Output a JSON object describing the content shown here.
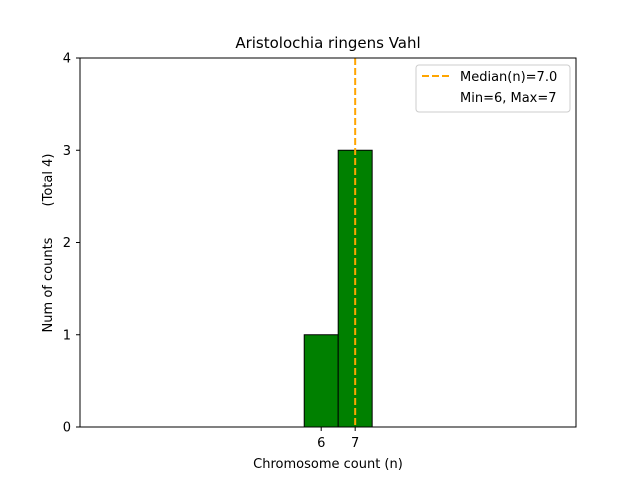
{
  "chart_data": {
    "type": "bar",
    "title": "Aristolochia ringens Vahl",
    "xlabel": "Chromosome count (n)",
    "ylabel": "Num of counts",
    "ylabel_extra": "(Total 4)",
    "bins": [
      {
        "x_start": 6.0,
        "x_end": 7.0,
        "count": 1
      },
      {
        "x_start": 7.0,
        "x_end": 8.0,
        "count": 3
      }
    ],
    "x_ticks": [
      {
        "value": 6.5,
        "label": "6"
      },
      {
        "value": 7.5,
        "label": "7"
      }
    ],
    "y_ticks": [
      {
        "value": 0,
        "label": "0"
      },
      {
        "value": 1,
        "label": "1"
      },
      {
        "value": 2,
        "label": "2"
      },
      {
        "value": 3,
        "label": "3"
      },
      {
        "value": 4,
        "label": "4"
      }
    ],
    "xlim": [
      -0.6,
      14.0
    ],
    "ylim": [
      0,
      4
    ],
    "baseline_end_x": 11.0,
    "median_x": 7.5,
    "grid": false,
    "legend_position": "upper right",
    "legend": [
      {
        "label": "Median(n)=7.0",
        "style": "dashed-line",
        "color": "#FFA500"
      },
      {
        "label": "Min=6, Max=7",
        "style": "none",
        "color": "#ffffff"
      }
    ],
    "colors": {
      "bar_fill": "#008000",
      "bar_edge": "#000000",
      "median_line": "#FFA500"
    }
  }
}
